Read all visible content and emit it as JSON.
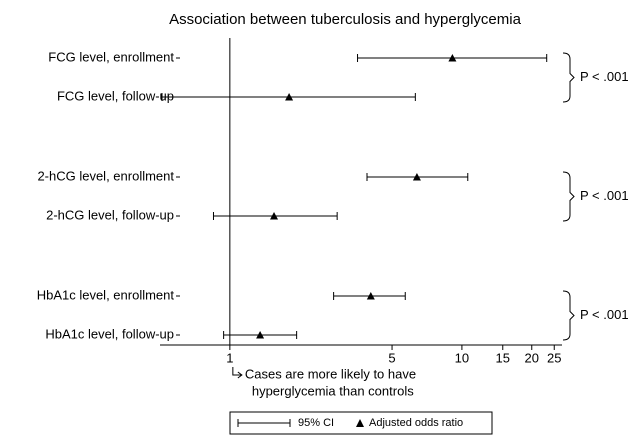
{
  "chart_data": {
    "type": "forest",
    "title": "Association between tuberculosis and hyperglycemia",
    "categories": [
      "FCG level, enrollment",
      "FCG level, follow-up",
      "2-hCG level, enrollment",
      "2-hCG level, follow-up",
      "HbA1c level, enrollment",
      "HbA1c level, follow-up"
    ],
    "series": [
      {
        "name": "Adjusted odds ratio",
        "color": "#000000",
        "values": [
          9.1,
          1.8,
          6.4,
          1.55,
          4.05,
          1.35
        ]
      }
    ],
    "ci_label": "95% CI",
    "ci_low": [
      3.55,
      0.51,
      3.9,
      0.85,
      2.8,
      0.94
    ],
    "ci_high": [
      23.2,
      6.3,
      10.6,
      2.9,
      5.7,
      1.94
    ],
    "p_values": [
      "P < .001",
      "P < .001",
      "P < .001"
    ],
    "annotation": [
      "Cases are more likely to have",
      "hyperglycemia than controls"
    ],
    "log_x": true,
    "xlim": [
      0.5,
      27
    ],
    "xticks": [
      1,
      5,
      10,
      15,
      20,
      25
    ],
    "reference_line": 1
  }
}
